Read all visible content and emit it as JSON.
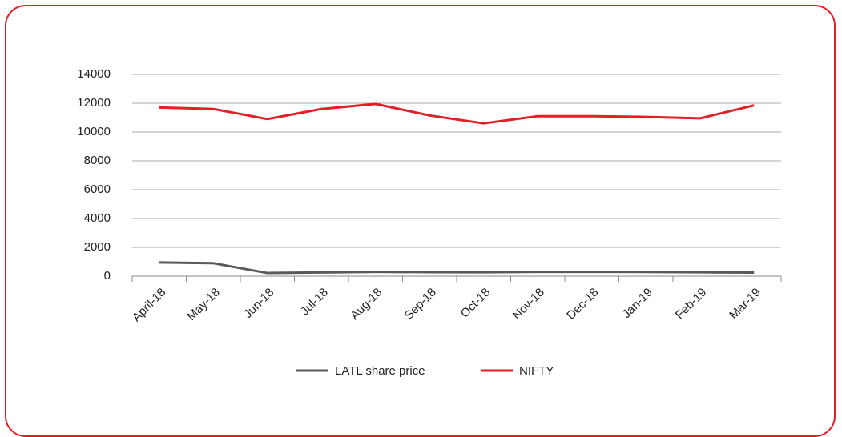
{
  "chart_data": {
    "type": "line",
    "categories": [
      "April-18",
      "May-18",
      "Jun-18",
      "Jul-18",
      "Aug-18",
      "Sep-18",
      "Oct-18",
      "Nov-18",
      "Dec-18",
      "Jan-19",
      "Feb-19",
      "Mar-19"
    ],
    "series": [
      {
        "name": "LATL share price",
        "color": "#595959",
        "values": [
          950,
          900,
          220,
          260,
          300,
          280,
          270,
          300,
          300,
          290,
          270,
          250
        ]
      },
      {
        "name": "NIFTY",
        "color": "#e31e24",
        "values": [
          11700,
          11600,
          10900,
          11600,
          11950,
          11150,
          10600,
          11100,
          11100,
          11050,
          10950,
          11850
        ]
      }
    ],
    "ylim": [
      0,
      14000
    ],
    "yticks": [
      0,
      2000,
      4000,
      6000,
      8000,
      10000,
      12000,
      14000
    ],
    "grid": true,
    "legend": "bottom"
  }
}
